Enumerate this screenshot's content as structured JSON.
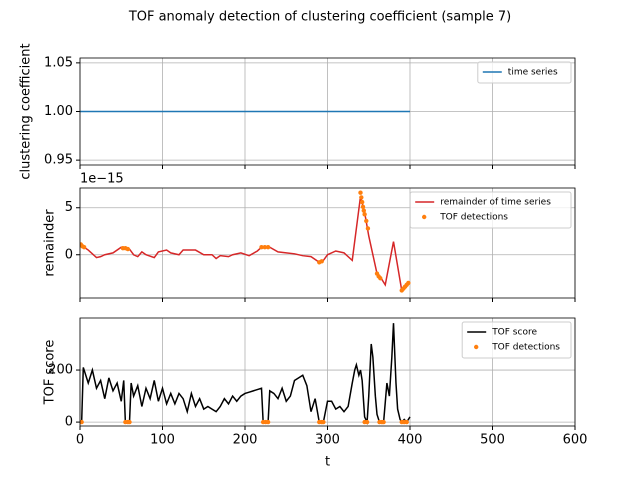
{
  "title": "TOF anomaly detection of clustering coefficient (sample 7)",
  "chart_data": [
    {
      "type": "line",
      "ylabel": "clustering coefficient",
      "xlim": [
        0,
        600
      ],
      "xticks": [
        0,
        100,
        200,
        300,
        400,
        500,
        600
      ],
      "ylim": [
        0.945,
        1.055
      ],
      "yticks": [
        0.95,
        {
          "value": 1,
          "label": "1.00"
        },
        1.05
      ],
      "grid": true,
      "legend": "upper right",
      "series": [
        {
          "name": "time series",
          "color": "#1f77b4",
          "kind": "line",
          "x": [
            0,
            400
          ],
          "values": [
            1,
            1
          ]
        }
      ]
    },
    {
      "type": "line",
      "ylabel": "remainder",
      "offset_label": "1e−15",
      "xlim": [
        0,
        600
      ],
      "xticks": [
        0,
        100,
        200,
        300,
        400,
        500,
        600
      ],
      "ylim": [
        -4.6,
        7.1
      ],
      "yticks": [
        0,
        5
      ],
      "grid": true,
      "legend": "upper right",
      "series": [
        {
          "name": "remainder of time series",
          "color": "#d62728",
          "kind": "line",
          "x": [
            0,
            5,
            10,
            20,
            25,
            30,
            40,
            50,
            60,
            65,
            70,
            75,
            80,
            90,
            95,
            105,
            110,
            120,
            125,
            140,
            150,
            160,
            165,
            170,
            180,
            185,
            195,
            205,
            215,
            220,
            230,
            240,
            250,
            260,
            270,
            280,
            290,
            295,
            300,
            310,
            320,
            330,
            340,
            345,
            350,
            360,
            365,
            370,
            380,
            390,
            395,
            400
          ],
          "values": [
            1.2,
            0.8,
            0.5,
            -0.3,
            -0.2,
            0.0,
            0.2,
            0.8,
            0.6,
            0.0,
            -0.2,
            0.3,
            0.0,
            -0.3,
            0.3,
            0.5,
            0.2,
            0.0,
            0.5,
            0.5,
            0.0,
            0.0,
            -0.4,
            -0.1,
            -0.2,
            0.0,
            0.2,
            -0.1,
            0.4,
            0.8,
            0.8,
            0.3,
            0.2,
            0.1,
            -0.1,
            -0.2,
            -0.8,
            -0.6,
            0.0,
            0.4,
            0.2,
            -0.6,
            6.2,
            4.5,
            2.0,
            -2.0,
            -2.5,
            -3.2,
            1.4,
            -3.8,
            -3.5,
            -2.9
          ]
        },
        {
          "name": "TOF detections",
          "color": "#ff7f0e",
          "kind": "scatter",
          "x": [
            1,
            3,
            5,
            52,
            55,
            58,
            220,
            224,
            228,
            290,
            293,
            340,
            341,
            342,
            343,
            344,
            345,
            347,
            349,
            360,
            362,
            364,
            390,
            392,
            394,
            396,
            398
          ],
          "values": [
            1.1,
            0.9,
            0.8,
            0.7,
            0.7,
            0.6,
            0.8,
            0.8,
            0.8,
            -0.8,
            -0.7,
            6.6,
            6.1,
            5.6,
            5.1,
            4.7,
            4.3,
            3.6,
            2.8,
            -2.0,
            -2.3,
            -2.5,
            -3.8,
            -3.6,
            -3.4,
            -3.2,
            -3.0
          ]
        }
      ]
    },
    {
      "type": "line",
      "ylabel": "TOF score",
      "xlabel": "t",
      "xlim": [
        0,
        600
      ],
      "xticks": [
        0,
        100,
        200,
        300,
        400,
        500,
        600
      ],
      "ylim": [
        -15,
        400
      ],
      "yticks": [
        0,
        200
      ],
      "grid": true,
      "legend": "upper right",
      "series": [
        {
          "name": "TOF score",
          "color": "#000000",
          "kind": "line",
          "x": [
            0,
            2,
            4,
            10,
            15,
            20,
            25,
            30,
            35,
            40,
            45,
            50,
            53,
            55,
            60,
            62,
            65,
            70,
            75,
            80,
            85,
            90,
            95,
            100,
            105,
            110,
            115,
            120,
            125,
            130,
            135,
            140,
            145,
            150,
            155,
            160,
            165,
            170,
            175,
            180,
            185,
            190,
            195,
            200,
            205,
            210,
            215,
            220,
            222,
            228,
            230,
            235,
            240,
            245,
            250,
            255,
            260,
            265,
            270,
            275,
            280,
            285,
            290,
            295,
            300,
            305,
            310,
            315,
            320,
            325,
            330,
            333,
            335,
            338,
            340,
            342,
            345,
            348,
            350,
            353,
            355,
            358,
            360,
            363,
            368,
            372,
            375,
            378,
            380,
            383,
            385,
            388,
            390,
            393,
            396,
            400
          ],
          "values": [
            0,
            0,
            210,
            150,
            200,
            130,
            160,
            90,
            170,
            120,
            150,
            80,
            160,
            0,
            0,
            150,
            100,
            140,
            60,
            130,
            90,
            160,
            80,
            130,
            70,
            110,
            70,
            110,
            90,
            40,
            110,
            60,
            90,
            50,
            60,
            50,
            40,
            60,
            90,
            70,
            100,
            80,
            100,
            110,
            115,
            120,
            125,
            130,
            0,
            0,
            120,
            110,
            90,
            130,
            80,
            100,
            160,
            170,
            180,
            140,
            40,
            90,
            0,
            0,
            80,
            80,
            50,
            60,
            40,
            60,
            150,
            200,
            220,
            180,
            200,
            160,
            20,
            0,
            100,
            300,
            250,
            100,
            30,
            0,
            0,
            150,
            100,
            250,
            380,
            150,
            50,
            10,
            0,
            10,
            0,
            20
          ]
        },
        {
          "name": "TOF detections",
          "color": "#ff7f0e",
          "kind": "scatter",
          "x": [
            0,
            2,
            55,
            58,
            60,
            222,
            225,
            228,
            290,
            293,
            295,
            345,
            348,
            363,
            366,
            368,
            390,
            393,
            396
          ],
          "values": [
            0,
            0,
            0,
            0,
            0,
            0,
            0,
            0,
            0,
            0,
            0,
            0,
            0,
            0,
            0,
            0,
            0,
            0,
            0
          ]
        }
      ]
    }
  ]
}
